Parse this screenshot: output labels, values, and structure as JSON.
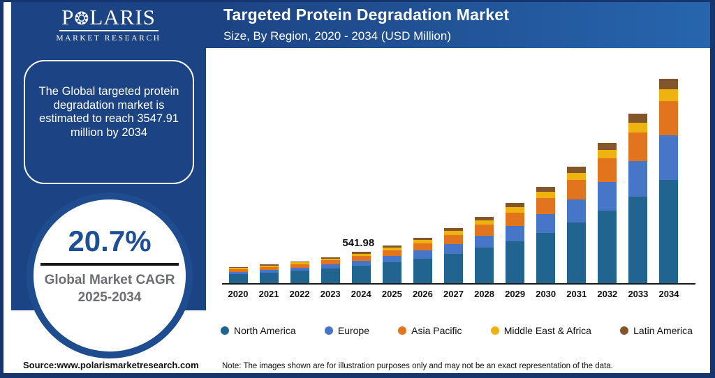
{
  "brand": {
    "logo_left": "P",
    "logo_right": "LARIS",
    "logo_sub": "MARKET RESEARCH",
    "panel_color": "#1c4383",
    "header_gradient_end": "#2765ad",
    "frame_color": "#16356e"
  },
  "icons": {
    "compass_star": "❂"
  },
  "header": {
    "title": "Targeted Protein Degradation Market",
    "subtitle": "Size, By Region, 2020 - 2034 (USD Million)"
  },
  "sidebar": {
    "callout": "The Global targeted protein degradation market is estimated to reach 3547.91 million by 2034",
    "cagr_value": "20.7%",
    "cagr_label_line1": "Global Market CAGR",
    "cagr_label_line2": "2025-2034"
  },
  "footer": {
    "source": "Source:www.polarismarketresearch.com",
    "note": "Note: The images shown are for illustration purposes only and may not be an exact representation of the data."
  },
  "chart_data": {
    "type": "bar",
    "stacked": true,
    "title": "Targeted Protein Degradation Market",
    "subtitle": "Size, By Region, 2020 - 2034 (USD Million)",
    "unit": "USD Million",
    "grid": false,
    "legend_position": "bottom",
    "ylim": [
      0,
      3700
    ],
    "categories": [
      "2020",
      "2021",
      "2022",
      "2023",
      "2024",
      "2025",
      "2026",
      "2027",
      "2028",
      "2029",
      "2030",
      "2031",
      "2032",
      "2033",
      "2034"
    ],
    "series": [
      {
        "name": "North America",
        "color": "#21648f",
        "values": [
          158.5,
          183.7,
          213.1,
          251.4,
          298.9,
          357.6,
          427.9,
          512.0,
          612.5,
          732.6,
          876.4,
          1048.1,
          1253.6,
          1499.1,
          1791.7
        ]
      },
      {
        "name": "Europe",
        "color": "#4776c9",
        "values": [
          38.9,
          47.3,
          57.4,
          70.8,
          88.0,
          109.8,
          136.9,
          170.5,
          212.2,
          263.7,
          327.6,
          406.6,
          504.3,
          624.8,
          773.4
        ]
      },
      {
        "name": "Asia Pacific",
        "color": "#e2741e",
        "values": [
          44.5,
          52.2,
          61.2,
          73.0,
          87.8,
          106.3,
          128.7,
          155.7,
          188.5,
          228.2,
          276.2,
          334.3,
          404.6,
          489.7,
          592.5
        ]
      },
      {
        "name": "Middle East & Africa",
        "color": "#eeb211",
        "values": [
          22.2,
          25.5,
          29.2,
          34.0,
          39.9,
          47.2,
          55.7,
          65.7,
          77.5,
          91.4,
          107.6,
          126.6,
          149.0,
          175.2,
          205.8
        ]
      },
      {
        "name": "Latin America",
        "color": "#82552b",
        "values": [
          13.9,
          16.3,
          19.1,
          22.8,
          27.4,
          33.2,
          40.2,
          48.6,
          58.7,
          71.2,
          86.0,
          104.2,
          126.0,
          152.6,
          184.5
        ]
      }
    ],
    "data_labels": [
      {
        "category": "2024",
        "value": "541.98"
      }
    ],
    "annotations": {
      "total_2024": 541.98,
      "total_2034": 3547.91,
      "cagr_2025_2034_percent": 20.7
    }
  }
}
